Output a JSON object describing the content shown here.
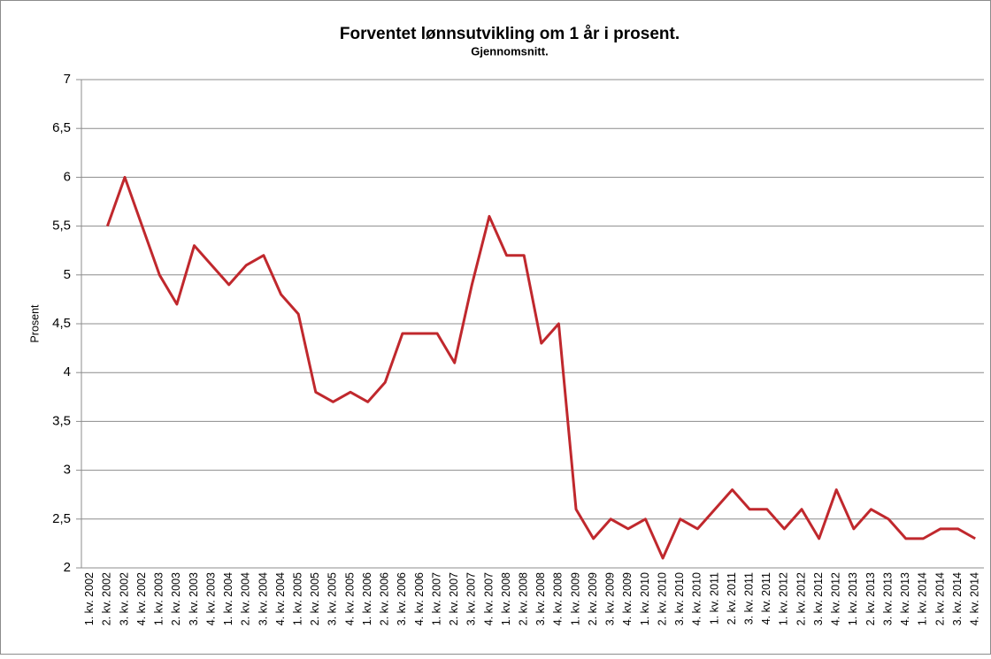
{
  "chart_data": {
    "type": "line",
    "title": "Forventet lønnsutvikling om 1 år i prosent.",
    "subtitle": "Gjennomsnitt.",
    "y_label": "Prosent",
    "categories": [
      "1. kv. 2002",
      "2. kv. 2002",
      "3. kv. 2002",
      "4. kv. 2002",
      "1. kv. 2003",
      "2. kv. 2003",
      "3. kv. 2003",
      "4. kv. 2003",
      "1. kv. 2004",
      "2. kv. 2004",
      "3. kv. 2004",
      "4. kv. 2004",
      "1. kv. 2005",
      "2. kv. 2005",
      "3. kv. 2005",
      "4. kv. 2005",
      "1. kv. 2006",
      "2. kv. 2006",
      "3. kv. 2006",
      "4. kv. 2006",
      "1. kv. 2007",
      "2. kv. 2007",
      "3. kv. 2007",
      "4. kv. 2007",
      "1. kv. 2008",
      "2. kv. 2008",
      "3. kv. 2008",
      "4. kv. 2008",
      "1. kv. 2009",
      "2. kv. 2009",
      "3. kv. 2009",
      "4. kv. 2009",
      "1. kv. 2010",
      "2. kv. 2010",
      "3. kv. 2010",
      "4. kv. 2010",
      "1. kv. 2011",
      "2. kv. 2011",
      "3. kv. 2011",
      "4. kv. 2011",
      "1. kv. 2012",
      "2. kv. 2012",
      "3. kv. 2012",
      "4. kv. 2012",
      "1. kv. 2013",
      "2. kv. 2013",
      "3. kv. 2013",
      "4. kv. 2013",
      "1. kv. 2014",
      "2. kv. 2014",
      "3. kv. 2014",
      "4. kv. 2014"
    ],
    "values": [
      null,
      5.5,
      6.0,
      5.5,
      5.0,
      4.7,
      5.3,
      5.1,
      4.9,
      5.1,
      5.2,
      4.8,
      4.6,
      3.8,
      3.7,
      3.8,
      3.7,
      3.9,
      4.4,
      4.4,
      4.4,
      4.1,
      4.9,
      5.6,
      5.2,
      5.2,
      4.3,
      4.5,
      2.6,
      2.3,
      2.5,
      2.4,
      2.5,
      2.1,
      2.5,
      2.4,
      2.6,
      2.8,
      2.6,
      2.6,
      2.4,
      2.6,
      2.3,
      2.8,
      2.4,
      2.6,
      2.5,
      2.3,
      2.3,
      2.4,
      2.4,
      2.3
    ],
    "color": "#c0282d",
    "ylim": [
      2,
      7
    ],
    "yticks": [
      2,
      {
        "value": 2.5,
        "label": "2,5"
      },
      3,
      {
        "value": 3.5,
        "label": "3,5"
      },
      4,
      {
        "value": 4.5,
        "label": "4,5"
      },
      5,
      {
        "value": 5.5,
        "label": "5,5"
      },
      6,
      {
        "value": 6.5,
        "label": "6,5"
      },
      7
    ],
    "grid": true
  }
}
